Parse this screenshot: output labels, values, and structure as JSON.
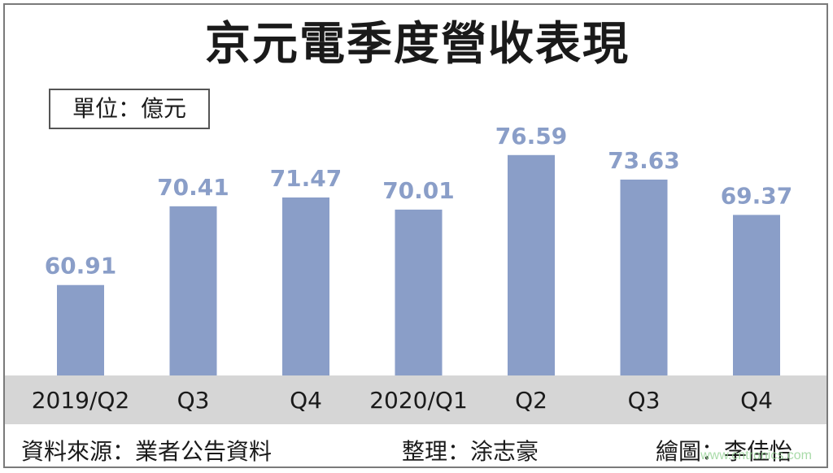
{
  "title": "京元電季度營收表現",
  "unit_label": "單位：億元",
  "chart_data": {
    "type": "bar",
    "title": "京元電季度營收表現",
    "unit": "億元",
    "categories": [
      "2019/Q2",
      "Q3",
      "Q4",
      "2020/Q1",
      "Q2",
      "Q3",
      "Q4"
    ],
    "values": [
      60.91,
      70.41,
      71.47,
      70.01,
      76.59,
      73.63,
      69.37
    ],
    "value_labels": [
      "60.91",
      "70.41",
      "71.47",
      "70.01",
      "76.59",
      "73.63",
      "69.37"
    ],
    "ylim": [
      50,
      80
    ],
    "grid": false,
    "bar_color": "#8a9ec8",
    "label_color": "#8a9ec8",
    "axis_band_color": "#d6d6d6"
  },
  "footer": {
    "source": "資料來源：業者公告資料",
    "editor": "整理：涂志豪",
    "illustrator": "繪圖：李佳怡"
  },
  "watermark": "www.cntronics.com"
}
